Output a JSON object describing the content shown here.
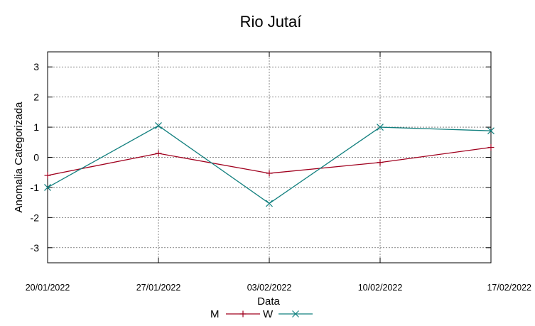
{
  "chart_data": {
    "type": "line",
    "title": "Rio Jutaí",
    "xlabel": "Data",
    "ylabel": "Anomalia Categorizada",
    "categories": [
      "20/01/2022",
      "27/01/2022",
      "03/02/2022",
      "10/02/2022",
      "17/02/2022"
    ],
    "ylim": [
      -3.5,
      3.5
    ],
    "yticks": [
      -3,
      -2,
      -1,
      0,
      1,
      2,
      3
    ],
    "grid": true,
    "legend_position": "bottom",
    "series": [
      {
        "name": "M",
        "color": "#a0001e",
        "marker": "plus",
        "values": [
          -0.6,
          0.13,
          -0.53,
          -0.17,
          0.33
        ]
      },
      {
        "name": "W",
        "color": "#13807f",
        "marker": "cross",
        "values": [
          -1.0,
          1.05,
          -1.53,
          1.0,
          0.88
        ]
      }
    ]
  }
}
